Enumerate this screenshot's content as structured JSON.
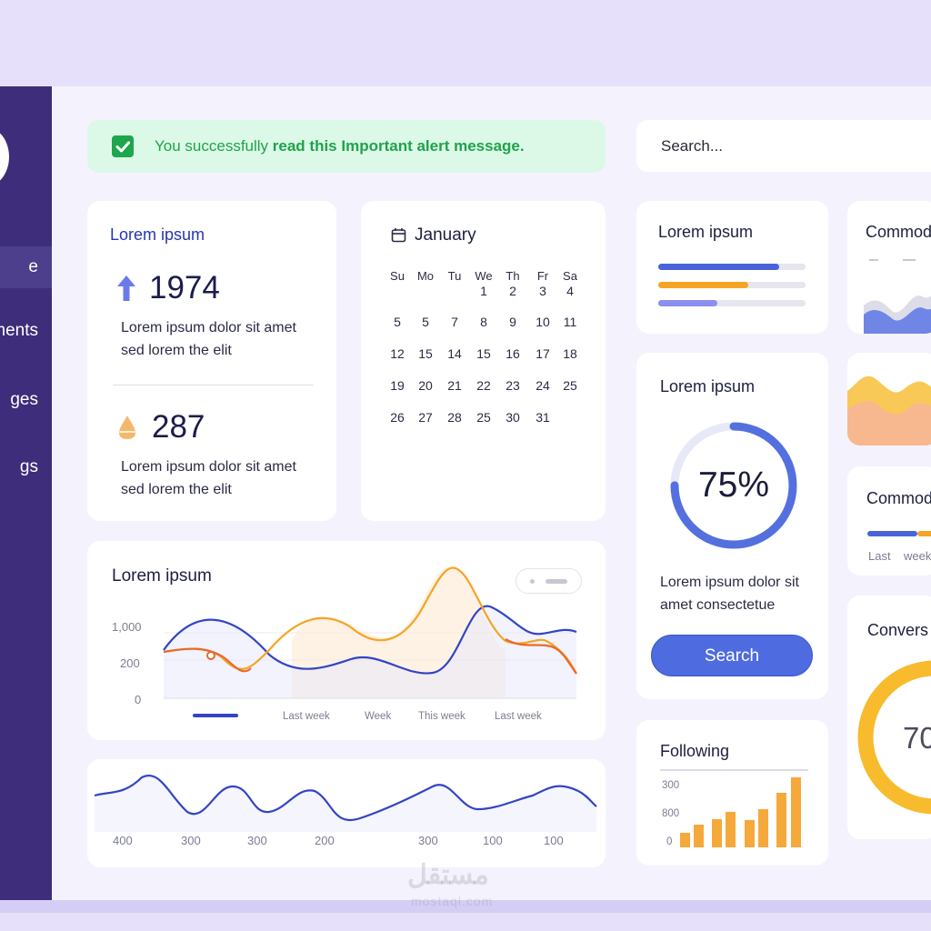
{
  "sidebar": {
    "items": [
      {
        "label": "e"
      },
      {
        "label": "ments"
      },
      {
        "label": "ges"
      },
      {
        "label": "gs"
      }
    ]
  },
  "alert": {
    "text_regular": "You successfully ",
    "text_bold": "read this Important alert message."
  },
  "search": {
    "placeholder": "Search..."
  },
  "stats_card": {
    "title": "Lorem ipsum",
    "stat1": {
      "value": "1974",
      "desc_line1": "Lorem ipsum dolor sit amet",
      "desc_line2": "sed lorem the elit"
    },
    "stat2": {
      "value": "287",
      "desc_line1": "Lorem ipsum dolor sit amet",
      "desc_line2": "sed lorem the elit"
    }
  },
  "calendar": {
    "month": "January",
    "weekdays": [
      "Su",
      "Mo",
      "Tu",
      "We",
      "Th",
      "Fr",
      "Sa"
    ],
    "weeks": [
      [
        "",
        "",
        "",
        "1",
        "2",
        "3",
        "4"
      ],
      [
        "5",
        "5",
        "7",
        "8",
        "9",
        "10",
        "11"
      ],
      [
        "12",
        "15",
        "14",
        "15",
        "16",
        "17",
        "18"
      ],
      [
        "19",
        "20",
        "21",
        "22",
        "23",
        "24",
        "25"
      ],
      [
        "26",
        "27",
        "28",
        "25",
        "30",
        "31",
        ""
      ]
    ]
  },
  "progress_card": {
    "title": "Lorem ipsum",
    "bars": [
      {
        "value": 0.82,
        "color": "#4a63d8"
      },
      {
        "value": 0.61,
        "color": "#f6a423"
      },
      {
        "value": 0.4,
        "color": "#8a8ff0"
      }
    ]
  },
  "commod_card1": {
    "title": "Commod"
  },
  "commod_card2": {
    "title": "Commod",
    "labels": [
      "Last",
      "week"
    ]
  },
  "donut_card": {
    "title": "Lorem ipsum",
    "percent_label": "75%",
    "percent": 75,
    "desc_line1": "Lorem ipsum dolor sit",
    "desc_line2": "amet consectetue",
    "button": "Search"
  },
  "conversion_card": {
    "title": "Convers",
    "value_label": "70"
  },
  "following_card": {
    "title": "Following",
    "y_labels": [
      "300",
      "800",
      "0"
    ]
  },
  "line_card": {
    "title": "Lorem ipsum",
    "y_labels": [
      "1,000",
      "200",
      "0"
    ],
    "x_labels": [
      "Last week",
      "Week",
      "This week",
      "Last week"
    ]
  },
  "wave_card": {
    "x_labels": [
      "400",
      "300",
      "300",
      "200",
      "300",
      "100",
      "100"
    ]
  },
  "watermark": {
    "text": "مستقل",
    "sub": "mostaql.com"
  },
  "colors": {
    "sidebar": "#3d2d7a",
    "accent_blue": "#4e6be0",
    "accent_orange": "#f6a423",
    "success": "#1fa34b"
  }
}
